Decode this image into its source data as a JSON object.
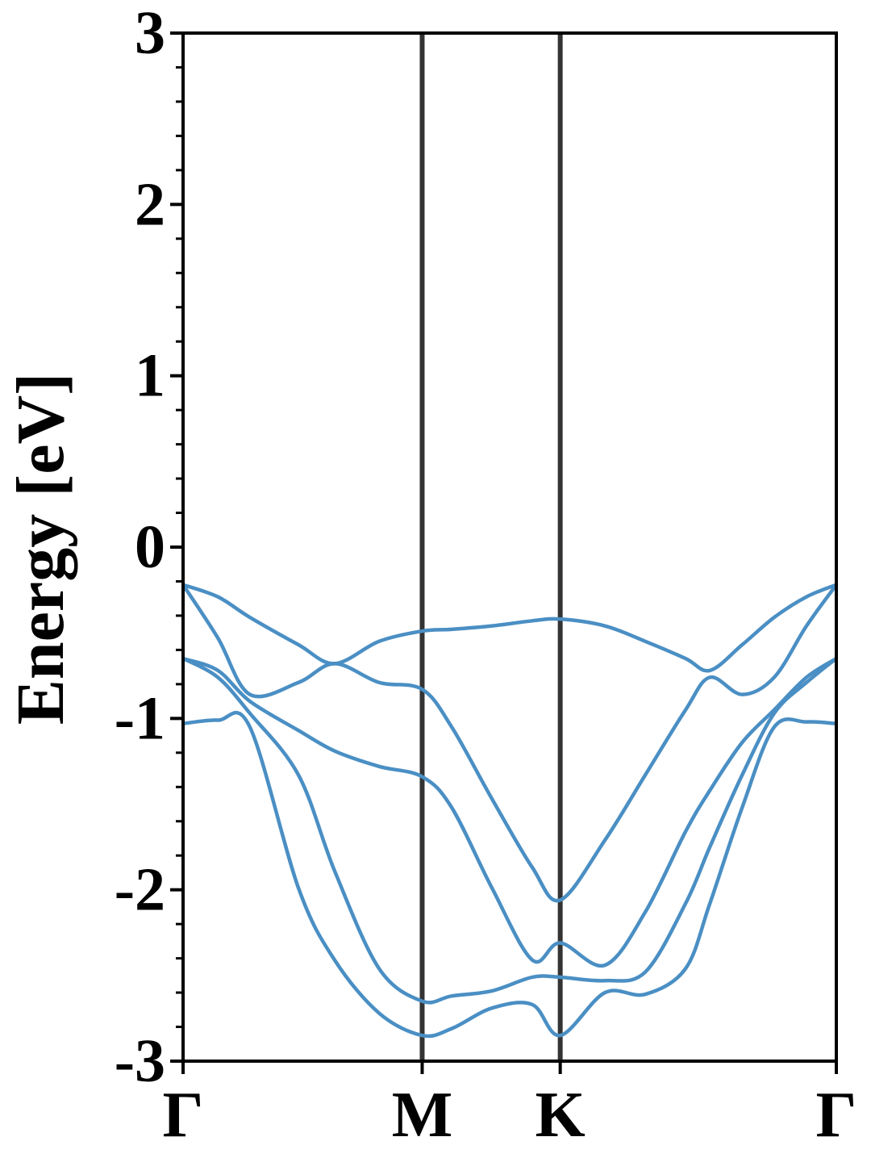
{
  "chart_data": {
    "type": "line",
    "y_label": "Energy [eV]",
    "x": [
      0,
      0.126,
      0.242,
      0.418,
      0.549,
      0.71,
      0.866,
      0.973,
      1.119,
      1.265,
      1.366,
      1.528,
      1.674,
      1.82,
      1.908,
      2.025,
      2.141,
      2.258,
      2.366
    ],
    "series": [
      {
        "color": "#4a8fc4",
        "values": [
          -0.22,
          -0.29,
          -0.41,
          -0.57,
          -0.68,
          -0.55,
          -0.49,
          -0.48,
          -0.46,
          -0.43,
          -0.42,
          -0.46,
          -0.55,
          -0.65,
          -0.72,
          -0.57,
          -0.41,
          -0.29,
          -0.22
        ]
      },
      {
        "color": "#4a8fc4",
        "values": [
          -0.22,
          -0.53,
          -0.86,
          -0.79,
          -0.68,
          -0.79,
          -0.83,
          -1.05,
          -1.47,
          -1.87,
          -2.06,
          -1.71,
          -1.33,
          -0.95,
          -0.76,
          -0.86,
          -0.76,
          -0.46,
          -0.22
        ]
      },
      {
        "color": "#4a8fc4",
        "values": [
          -0.65,
          -0.72,
          -0.9,
          -1.07,
          -1.19,
          -1.28,
          -1.34,
          -1.52,
          -1.99,
          -2.41,
          -2.31,
          -2.44,
          -2.13,
          -1.66,
          -1.42,
          -1.14,
          -0.95,
          -0.76,
          -0.65
        ]
      },
      {
        "color": "#4a8fc4",
        "values": [
          -0.65,
          -0.76,
          -0.97,
          -1.33,
          -1.89,
          -2.46,
          -2.65,
          -2.62,
          -2.59,
          -2.51,
          -2.51,
          -2.53,
          -2.48,
          -2.08,
          -1.75,
          -1.33,
          -0.97,
          -0.79,
          -0.65
        ]
      },
      {
        "color": "#4a8fc4",
        "values": [
          -1.03,
          -1.01,
          -1.05,
          -1.99,
          -2.41,
          -2.72,
          -2.85,
          -2.81,
          -2.69,
          -2.67,
          -2.85,
          -2.6,
          -2.61,
          -2.46,
          -2.08,
          -1.52,
          -1.05,
          -1.02,
          -1.03
        ]
      }
    ],
    "xlim": [
      0,
      2.366
    ],
    "xticks": [
      {
        "value": 0,
        "label": "Γ"
      },
      {
        "value": 0.866,
        "label": "M"
      },
      {
        "value": 1.366,
        "label": "K"
      },
      {
        "value": 2.366,
        "label": "Γ"
      }
    ],
    "ylim": [
      -3,
      3
    ],
    "yticks": [
      -3,
      -2,
      -1,
      0,
      1,
      2,
      3
    ],
    "yminorticks": [
      -2.8,
      -2.6,
      -2.4,
      -2.2,
      -1.8,
      -1.6,
      -1.4,
      -1.2,
      -0.8,
      -0.6,
      -0.4,
      -0.2,
      0.2,
      0.4,
      0.6,
      0.8,
      1.2,
      1.4,
      1.6,
      1.8,
      2.2,
      2.4,
      2.6,
      2.8
    ],
    "symmetry_lines": true,
    "symmetry_line_color": "#333333"
  }
}
